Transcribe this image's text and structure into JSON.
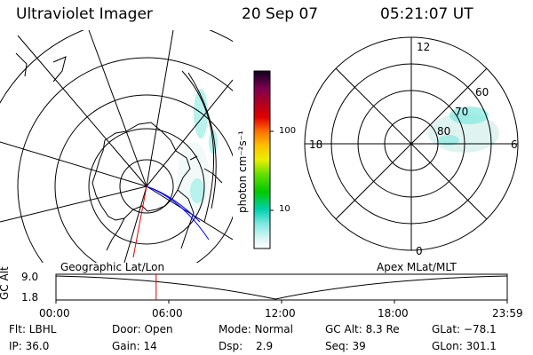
{
  "header": {
    "instrument": "Ultraviolet Imager",
    "date": "20 Sep 07",
    "time": "05:21:07 UT"
  },
  "colorbar": {
    "label": "photon cm⁻²s⁻¹",
    "ticks": [
      "100",
      "10"
    ]
  },
  "polar_plot": {
    "mlt_labels": [
      "12",
      "18",
      "6",
      "0"
    ],
    "mlat_labels": [
      "60",
      "70",
      "80"
    ]
  },
  "orbit": {
    "yaxis_label": "GC Alt",
    "ymax": "9.0",
    "ymin": "1.8",
    "left_caption": "Geographic Lat/Lon",
    "right_caption": "Apex MLat/MLT",
    "time_ticks": [
      "00:00",
      "06:00",
      "12:00",
      "18:00",
      "23:59"
    ],
    "current_time_fraction": 0.222
  },
  "info": {
    "flt": "Flt: LBHL",
    "ip": "IP: 36.0",
    "door": "Door: Open",
    "gain": "Gain: 14",
    "mode": "Mode: Normal",
    "dsp": "Dsp:",
    "dsp_val": "2.9",
    "gcalt": "GC Alt: 8.3 Re",
    "seq": "Seq: 39",
    "glat": "GLat: −78.1",
    "glon": "GLon: 301.1"
  },
  "colors": {
    "aurora": "#7fe8e0",
    "red_marker": "#e00000",
    "blue_track": "#0000ff"
  }
}
